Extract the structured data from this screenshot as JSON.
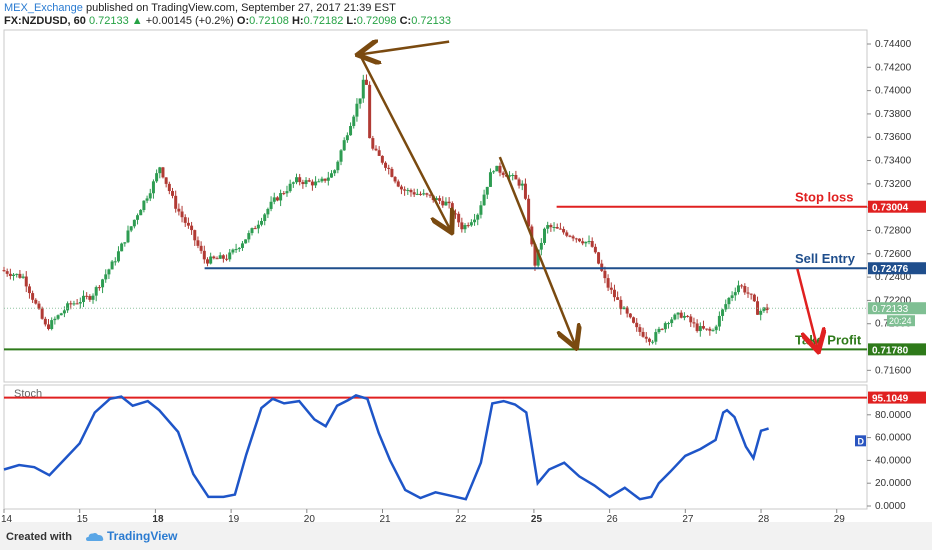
{
  "header": {
    "author": "MEX_Exchange",
    "published": "published on TradingView.com, September 27, 2017 21:39 EST",
    "symbol": "FX:NZDUSD, 60",
    "last": "0.72133",
    "change_arrow": "▲",
    "change": "+0.00145 (+0.2%)",
    "open_label": "O:",
    "open": "0.72108",
    "high_label": "H:",
    "high": "0.72182",
    "low_label": "L:",
    "low": "0.72098",
    "close_label": "C:",
    "close": "0.72133"
  },
  "footer": {
    "created": "Created with",
    "brand": "TradingView"
  },
  "colors": {
    "up": "#2e9c52",
    "down": "#b13a34",
    "arrow": "#7a4a10",
    "stop": "#e02020",
    "entry": "#1f4e8c",
    "take": "#2e7a1a",
    "stoch": "#1e55c8"
  },
  "chart_data": [
    {
      "type": "candlestick",
      "ylim": [
        0.715,
        0.7452
      ],
      "y_ticks": [
        "0.74400",
        "0.74200",
        "0.74000",
        "0.73800",
        "0.73600",
        "0.73400",
        "0.73200",
        "0.73000",
        "0.72800",
        "0.72600",
        "0.72400",
        "0.72200",
        "0.72000",
        "0.71600"
      ],
      "x_ticks": [
        "14",
        "15",
        "18",
        "19",
        "20",
        "21",
        "22",
        "25",
        "26",
        "27",
        "28",
        "29"
      ],
      "x_range": [
        0,
        11.4
      ],
      "price_path": [
        [
          0.0,
          0.7246
        ],
        [
          0.3,
          0.724
        ],
        [
          0.6,
          0.7196
        ],
        [
          0.9,
          0.7216
        ],
        [
          1.2,
          0.7224
        ],
        [
          1.5,
          0.7254
        ],
        [
          1.8,
          0.7294
        ],
        [
          2.0,
          0.7318
        ],
        [
          2.1,
          0.7335
        ],
        [
          2.3,
          0.7302
        ],
        [
          2.5,
          0.728
        ],
        [
          2.7,
          0.7254
        ],
        [
          3.0,
          0.7257
        ],
        [
          3.3,
          0.7278
        ],
        [
          3.6,
          0.7305
        ],
        [
          3.9,
          0.7323
        ],
        [
          4.2,
          0.732
        ],
        [
          4.4,
          0.733
        ],
        [
          4.6,
          0.7369
        ],
        [
          4.75,
          0.7396
        ],
        [
          4.82,
          0.7415
        ],
        [
          4.88,
          0.7352
        ],
        [
          5.1,
          0.7335
        ],
        [
          5.3,
          0.7315
        ],
        [
          5.6,
          0.731
        ],
        [
          5.9,
          0.7303
        ],
        [
          6.1,
          0.7282
        ],
        [
          6.3,
          0.7295
        ],
        [
          6.5,
          0.7334
        ],
        [
          6.7,
          0.7328
        ],
        [
          6.9,
          0.7318
        ],
        [
          7.05,
          0.725
        ],
        [
          7.2,
          0.7284
        ],
        [
          7.5,
          0.7277
        ],
        [
          7.8,
          0.7268
        ],
        [
          8.0,
          0.7234
        ],
        [
          8.2,
          0.7214
        ],
        [
          8.4,
          0.7195
        ],
        [
          8.6,
          0.7186
        ],
        [
          8.8,
          0.7203
        ],
        [
          9.0,
          0.7208
        ],
        [
          9.2,
          0.7196
        ],
        [
          9.4,
          0.7193
        ],
        [
          9.6,
          0.722
        ],
        [
          9.75,
          0.7234
        ],
        [
          9.9,
          0.7224
        ],
        [
          10.0,
          0.721
        ],
        [
          10.1,
          0.7213
        ]
      ],
      "annotations": [
        {
          "type": "line",
          "label": "Stop loss",
          "value": 0.73004,
          "price_tag": "0.73004",
          "x_start": 7.3
        },
        {
          "type": "line",
          "label": "Sell Entry",
          "value": 0.72476,
          "price_tag": "0.72476",
          "x_start": 2.65
        },
        {
          "type": "line",
          "label": "Take Profit",
          "value": 0.7178,
          "price_tag": "0.71780",
          "x_start": 0.0
        },
        {
          "type": "last",
          "price_tag": "0.72133",
          "value": 0.72133
        },
        {
          "type": "countdown",
          "text": "20:24"
        }
      ],
      "arrows": [
        {
          "from": [
            5.88,
            0.7442
          ],
          "to": [
            4.7,
            0.7431
          ]
        },
        {
          "from": [
            4.7,
            0.7431
          ],
          "to": [
            5.9,
            0.728
          ]
        },
        {
          "from": [
            6.55,
            0.7343
          ],
          "to": [
            7.55,
            0.7181
          ]
        },
        {
          "from": [
            10.48,
            0.7247
          ],
          "to": [
            10.75,
            0.7178
          ]
        }
      ]
    },
    {
      "type": "line",
      "title": "Stoch",
      "series": [
        {
          "name": "D",
          "values": []
        }
      ],
      "ylim": [
        0,
        100
      ],
      "y_ticks": [
        "80.0000",
        "60.0000",
        "40.0000",
        "20.0000",
        "0.0000"
      ],
      "level_line": {
        "value": 95.1049,
        "label": "95.1049"
      },
      "d_points": [
        [
          0.0,
          32
        ],
        [
          0.2,
          36
        ],
        [
          0.4,
          34
        ],
        [
          0.6,
          27
        ],
        [
          0.8,
          41
        ],
        [
          1.0,
          55
        ],
        [
          1.2,
          82
        ],
        [
          1.4,
          94
        ],
        [
          1.55,
          96
        ],
        [
          1.7,
          88
        ],
        [
          1.9,
          92
        ],
        [
          2.05,
          84
        ],
        [
          2.3,
          65
        ],
        [
          2.5,
          28
        ],
        [
          2.7,
          8
        ],
        [
          2.9,
          8
        ],
        [
          3.05,
          10
        ],
        [
          3.2,
          45
        ],
        [
          3.4,
          86
        ],
        [
          3.55,
          94
        ],
        [
          3.7,
          90
        ],
        [
          3.9,
          92
        ],
        [
          4.1,
          76
        ],
        [
          4.25,
          70
        ],
        [
          4.4,
          88
        ],
        [
          4.55,
          93
        ],
        [
          4.65,
          97
        ],
        [
          4.8,
          94
        ],
        [
          4.95,
          64
        ],
        [
          5.1,
          40
        ],
        [
          5.3,
          14
        ],
        [
          5.5,
          7
        ],
        [
          5.7,
          12
        ],
        [
          5.9,
          9
        ],
        [
          6.1,
          6
        ],
        [
          6.3,
          38
        ],
        [
          6.45,
          90
        ],
        [
          6.6,
          92
        ],
        [
          6.75,
          89
        ],
        [
          6.9,
          82
        ],
        [
          7.05,
          20
        ],
        [
          7.2,
          32
        ],
        [
          7.4,
          38
        ],
        [
          7.6,
          26
        ],
        [
          7.8,
          18
        ],
        [
          8.0,
          8
        ],
        [
          8.2,
          16
        ],
        [
          8.4,
          6
        ],
        [
          8.55,
          8
        ],
        [
          8.65,
          20
        ],
        [
          8.8,
          30
        ],
        [
          9.0,
          44
        ],
        [
          9.2,
          50
        ],
        [
          9.4,
          58
        ],
        [
          9.5,
          82
        ],
        [
          9.55,
          84
        ],
        [
          9.65,
          78
        ],
        [
          9.8,
          52
        ],
        [
          9.9,
          42
        ],
        [
          10.0,
          66
        ],
        [
          10.1,
          68
        ]
      ]
    }
  ]
}
